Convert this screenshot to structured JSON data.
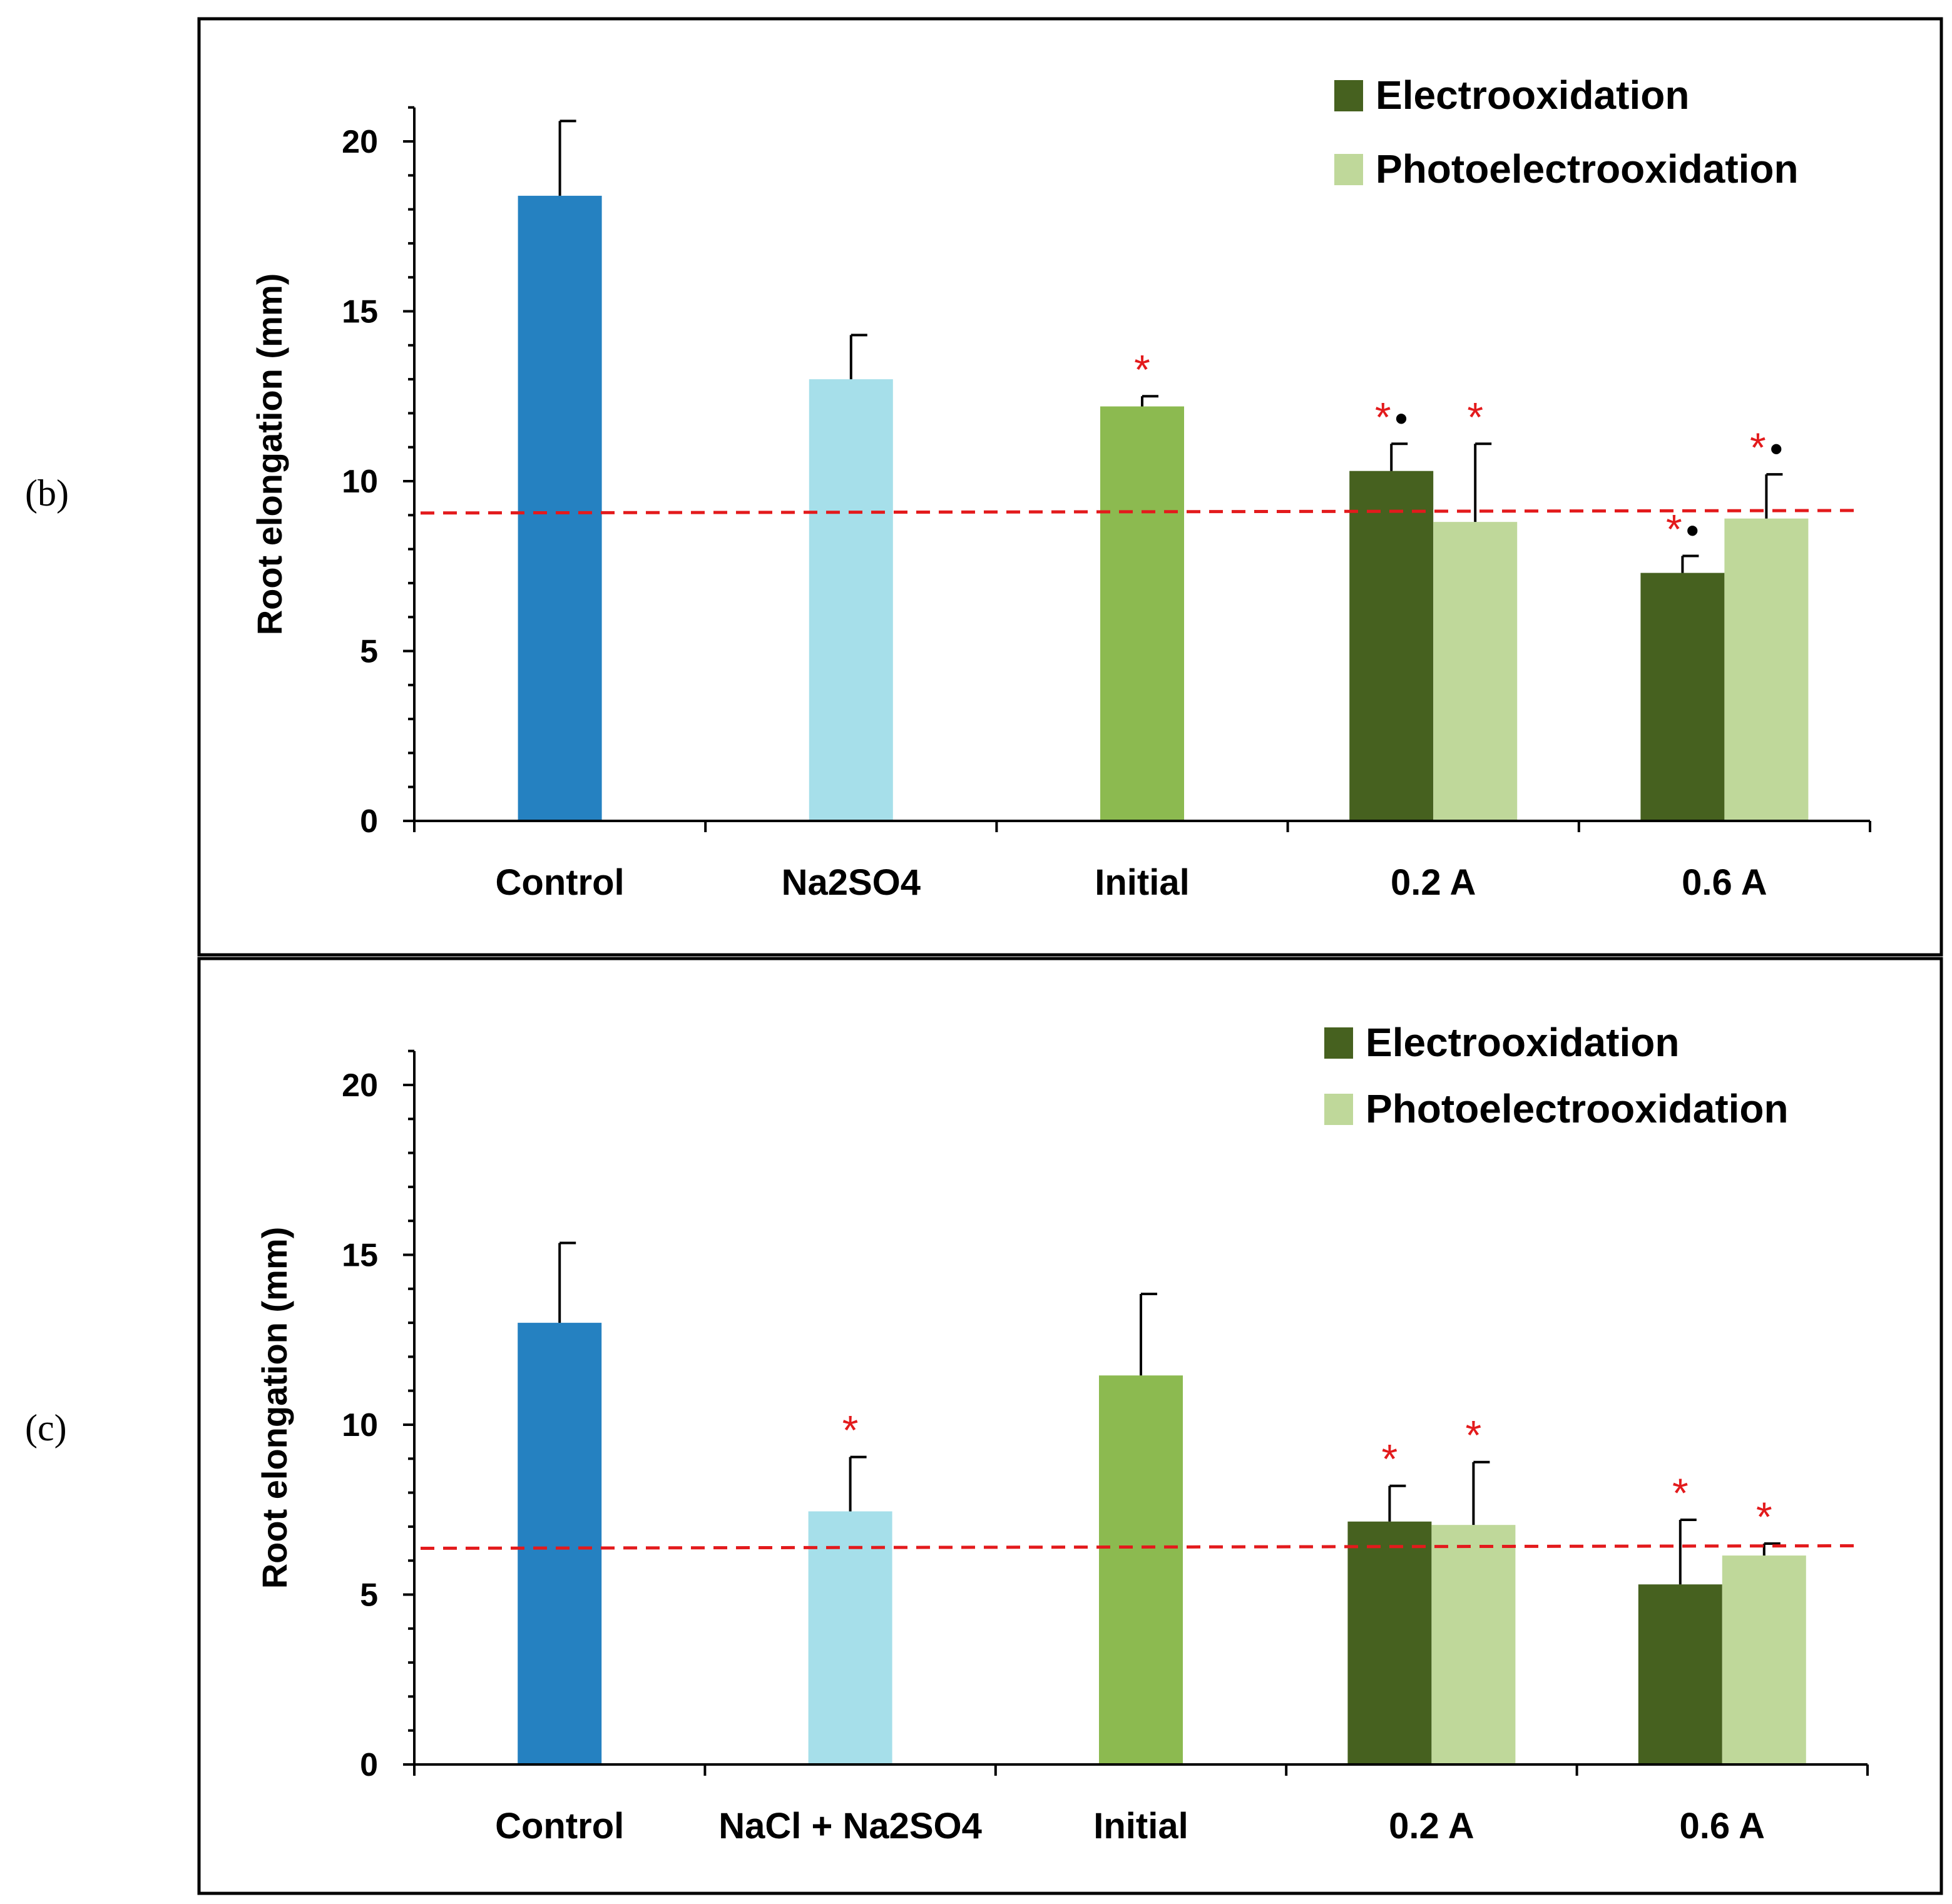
{
  "colors": {
    "control": "#2581c1",
    "na2so4": "#a6dfea",
    "initial": "#8cba50",
    "electro": "#46611f",
    "photo": "#bfd89a",
    "threshold": "#e31a1c",
    "sig_star": "#e31a1c",
    "sig_dot": "#000000"
  },
  "chart_data": [
    {
      "panel_label": "(b)",
      "type": "bar",
      "ylabel": "Root elongation (mm)",
      "ylim": [
        0,
        21
      ],
      "yticks": [
        "0",
        "5",
        "10",
        "15",
        "20"
      ],
      "categories": [
        "Control",
        "Na2SO4",
        "Initial",
        "0.2 A",
        "0.6 A"
      ],
      "threshold_line": 9.1,
      "legend": [
        "Electrooxidation",
        "Photoelectrooxidation"
      ],
      "bars": [
        {
          "category": 0,
          "slot": "single",
          "color_key": "control",
          "value": 18.4,
          "error": 2.2,
          "marks": ""
        },
        {
          "category": 1,
          "slot": "single",
          "color_key": "na2so4",
          "value": 13.0,
          "error": 1.3,
          "marks": ""
        },
        {
          "category": 2,
          "slot": "single",
          "color_key": "initial",
          "value": 12.2,
          "error": 0.3,
          "marks": "*"
        },
        {
          "category": 3,
          "slot": "left",
          "color_key": "electro",
          "value": 10.3,
          "error": 0.8,
          "marks": "*•"
        },
        {
          "category": 3,
          "slot": "right",
          "color_key": "photo",
          "value": 8.8,
          "error": 2.3,
          "marks": "*"
        },
        {
          "category": 4,
          "slot": "left",
          "color_key": "electro",
          "value": 7.3,
          "error": 0.5,
          "marks": "*•"
        },
        {
          "category": 4,
          "slot": "right",
          "color_key": "photo",
          "value": 8.9,
          "error": 1.3,
          "marks": "*•"
        }
      ]
    },
    {
      "panel_label": "(c)",
      "type": "bar",
      "ylabel": "Root elongation (mm)",
      "ylim": [
        0,
        21
      ],
      "yticks": [
        "0",
        "5",
        "10",
        "15",
        "20"
      ],
      "categories": [
        "Control",
        "NaCl + Na2SO4",
        "Initial",
        "0.2 A",
        "0.6 A"
      ],
      "threshold_line": 6.4,
      "legend": [
        "Electrooxidation",
        "Photoelectrooxidation"
      ],
      "bars": [
        {
          "category": 0,
          "slot": "single",
          "color_key": "control",
          "value": 13.0,
          "error": 2.35,
          "marks": ""
        },
        {
          "category": 1,
          "slot": "single",
          "color_key": "na2so4",
          "value": 7.45,
          "error": 1.6,
          "marks": "*"
        },
        {
          "category": 2,
          "slot": "single",
          "color_key": "initial",
          "value": 11.45,
          "error": 2.4,
          "marks": ""
        },
        {
          "category": 3,
          "slot": "left",
          "color_key": "electro",
          "value": 7.15,
          "error": 1.05,
          "marks": "*"
        },
        {
          "category": 3,
          "slot": "right",
          "color_key": "photo",
          "value": 7.05,
          "error": 1.85,
          "marks": "*"
        },
        {
          "category": 4,
          "slot": "left",
          "color_key": "electro",
          "value": 5.3,
          "error": 1.9,
          "marks": "*"
        },
        {
          "category": 4,
          "slot": "right",
          "color_key": "photo",
          "value": 6.15,
          "error": 0.35,
          "marks": "*"
        }
      ]
    }
  ]
}
